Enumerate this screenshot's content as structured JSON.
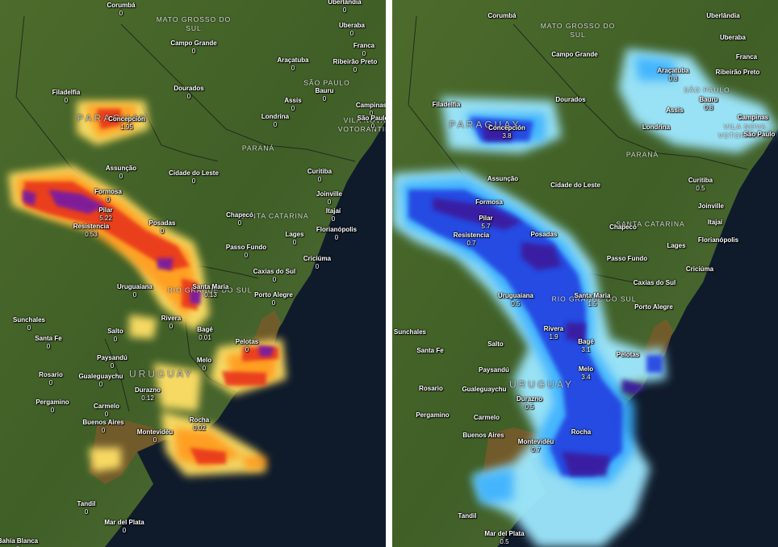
{
  "colors": {
    "land": "#4a6a2a",
    "ocean": "#0e1a2a",
    "precip_scale": [
      "#ffe066",
      "#ff9a1f",
      "#e8361f",
      "#7a1ea0",
      "#3a1a8a"
    ],
    "total_scale": [
      "#9ee8ff",
      "#3ab0ff",
      "#2340e0",
      "#3a1fa0",
      "#6b1f8a"
    ]
  },
  "left_map": {
    "regions": [
      {
        "id": "mato-grosso-do-sul",
        "text": "MATO GROSSO DO\nSUL",
        "big": false
      },
      {
        "id": "sao-paulo",
        "text": "SÃO PAULO",
        "big": false
      },
      {
        "id": "paraguay",
        "text": "PARAGUAY",
        "big": true
      },
      {
        "id": "parana",
        "text": "PARANÁ",
        "big": false
      },
      {
        "id": "santa-catarina",
        "text": "SANTA CATARINA",
        "big": false
      },
      {
        "id": "rio-grande-do-sul",
        "text": "RIO GRANDE DO SUL",
        "big": false
      },
      {
        "id": "uruguay",
        "text": "URUGUAY",
        "big": true
      },
      {
        "id": "vila-nova",
        "text": "VILA NOVA\nVOTORANTIM",
        "big": false
      }
    ],
    "cities": [
      {
        "name": "Corumbá",
        "value": "0"
      },
      {
        "name": "Uberlândia",
        "value": "0"
      },
      {
        "name": "Uberaba",
        "value": "0"
      },
      {
        "name": "Campo Grande",
        "value": "0"
      },
      {
        "name": "Franca",
        "value": "0"
      },
      {
        "name": "Araçatuba",
        "value": "0"
      },
      {
        "name": "Ribeirão Preto",
        "value": "0"
      },
      {
        "name": "Dourados",
        "value": "0"
      },
      {
        "name": "Bauru",
        "value": "0"
      },
      {
        "name": "Assis",
        "value": "0"
      },
      {
        "name": "Campinas",
        "value": "0"
      },
      {
        "name": "São Paulo",
        "value": "0"
      },
      {
        "name": "Filadelfia",
        "value": "0"
      },
      {
        "name": "Concepción",
        "value": "1.95"
      },
      {
        "name": "Londrina",
        "value": "0"
      },
      {
        "name": "Assunção",
        "value": "0"
      },
      {
        "name": "Cidade do Leste",
        "value": "0"
      },
      {
        "name": "Curitiba",
        "value": "0"
      },
      {
        "name": "Formosa",
        "value": "0"
      },
      {
        "name": "Joinville",
        "value": "0"
      },
      {
        "name": "Pilar",
        "value": "5.22"
      },
      {
        "name": "Itajaí",
        "value": "0"
      },
      {
        "name": "Posadas",
        "value": "0"
      },
      {
        "name": "Chapecó",
        "value": "0"
      },
      {
        "name": "Florianópolis",
        "value": "0"
      },
      {
        "name": "Resistencia",
        "value": "0.53"
      },
      {
        "name": "Lages",
        "value": "0"
      },
      {
        "name": "Passo Fundo",
        "value": "0"
      },
      {
        "name": "Criciúma",
        "value": "0"
      },
      {
        "name": "Caxias do Sul",
        "value": "0"
      },
      {
        "name": "Uruguaiana",
        "value": "0"
      },
      {
        "name": "Santa Maria",
        "value": "0.13"
      },
      {
        "name": "Porto Alegre",
        "value": "0"
      },
      {
        "name": "Sunchales",
        "value": "0"
      },
      {
        "name": "Rivera",
        "value": "0"
      },
      {
        "name": "Santa Fe",
        "value": "0"
      },
      {
        "name": "Salto",
        "value": "0"
      },
      {
        "name": "Bagé",
        "value": "0.01"
      },
      {
        "name": "Pelotas",
        "value": "0"
      },
      {
        "name": "Paysandú",
        "value": "0"
      },
      {
        "name": "Melo",
        "value": "0"
      },
      {
        "name": "Rosario",
        "value": "0"
      },
      {
        "name": "Gualeguaychu",
        "value": "0"
      },
      {
        "name": "Durazno",
        "value": "0.12"
      },
      {
        "name": "Pergamino",
        "value": "0"
      },
      {
        "name": "Carmelo",
        "value": "0"
      },
      {
        "name": "Buenos Aires",
        "value": "0"
      },
      {
        "name": "Rocha",
        "value": "0.02"
      },
      {
        "name": "Montevidéu",
        "value": "0"
      },
      {
        "name": "Tandil",
        "value": "0"
      },
      {
        "name": "Mar del Plata",
        "value": "0"
      },
      {
        "name": "Bahía Blanca",
        "value": "0"
      }
    ]
  },
  "right_map": {
    "regions": [
      {
        "id": "mato-grosso-do-sul",
        "text": "MATO GROSSO DO\nSUL",
        "big": false
      },
      {
        "id": "sao-paulo",
        "text": "SÃO PAULO",
        "big": false
      },
      {
        "id": "paraguay",
        "text": "PARAGUAY",
        "big": true
      },
      {
        "id": "parana",
        "text": "PARANÁ",
        "big": false
      },
      {
        "id": "santa-catarina",
        "text": "SANTA CATARINA",
        "big": false
      },
      {
        "id": "rio-grande-do-sul",
        "text": "RIO GRANDE DO SUL",
        "big": false
      },
      {
        "id": "uruguay",
        "text": "URUGUAY",
        "big": true
      },
      {
        "id": "vila-nova",
        "text": "VILA NOVA\nVOTORANTIM",
        "big": false
      }
    ],
    "cities": [
      {
        "name": "Corumbá",
        "value": ""
      },
      {
        "name": "Uberlândia",
        "value": ""
      },
      {
        "name": "Uberaba",
        "value": ""
      },
      {
        "name": "Campo Grande",
        "value": ""
      },
      {
        "name": "Franca",
        "value": ""
      },
      {
        "name": "Araçatuba",
        "value": "0.8"
      },
      {
        "name": "Ribeirão Preto",
        "value": ""
      },
      {
        "name": "Dourados",
        "value": ""
      },
      {
        "name": "Bauru",
        "value": "0.8"
      },
      {
        "name": "Assis",
        "value": ""
      },
      {
        "name": "Campinas",
        "value": ""
      },
      {
        "name": "São Paulo",
        "value": ""
      },
      {
        "name": "Filadelfia",
        "value": ""
      },
      {
        "name": "Concepción",
        "value": "3.8"
      },
      {
        "name": "Londrina",
        "value": ""
      },
      {
        "name": "Assunção",
        "value": ""
      },
      {
        "name": "Cidade do Leste",
        "value": ""
      },
      {
        "name": "Curitiba",
        "value": "0.5"
      },
      {
        "name": "Formosa",
        "value": ""
      },
      {
        "name": "Joinville",
        "value": ""
      },
      {
        "name": "Pilar",
        "value": "5.7"
      },
      {
        "name": "Itajaí",
        "value": ""
      },
      {
        "name": "Posadas",
        "value": ""
      },
      {
        "name": "Chapecó",
        "value": ""
      },
      {
        "name": "Florianópolis",
        "value": ""
      },
      {
        "name": "Resistencia",
        "value": "0.7"
      },
      {
        "name": "Lages",
        "value": ""
      },
      {
        "name": "Passo Fundo",
        "value": ""
      },
      {
        "name": "Criciúma",
        "value": ""
      },
      {
        "name": "Caxias do Sul",
        "value": ""
      },
      {
        "name": "Uruguaiana",
        "value": "0.5"
      },
      {
        "name": "Santa Maria",
        "value": "1.5"
      },
      {
        "name": "Porto Alegre",
        "value": ""
      },
      {
        "name": "Sunchales",
        "value": ""
      },
      {
        "name": "Rivera",
        "value": "1.9"
      },
      {
        "name": "Santa Fe",
        "value": ""
      },
      {
        "name": "Salto",
        "value": ""
      },
      {
        "name": "Bagé",
        "value": "3.1"
      },
      {
        "name": "Pelotas",
        "value": ""
      },
      {
        "name": "Paysandú",
        "value": ""
      },
      {
        "name": "Melo",
        "value": "3.4"
      },
      {
        "name": "Rosario",
        "value": ""
      },
      {
        "name": "Gualeguaychu",
        "value": ""
      },
      {
        "name": "Durazno",
        "value": "0.5"
      },
      {
        "name": "Pergamino",
        "value": ""
      },
      {
        "name": "Carmelo",
        "value": ""
      },
      {
        "name": "Buenos Aires",
        "value": ""
      },
      {
        "name": "Rocha",
        "value": ""
      },
      {
        "name": "Montevidéu",
        "value": "0.7"
      },
      {
        "name": "Tandil",
        "value": ""
      },
      {
        "name": "Mar del Plata",
        "value": "0.5"
      },
      {
        "name": "Bahía Blanca",
        "value": ""
      }
    ]
  }
}
